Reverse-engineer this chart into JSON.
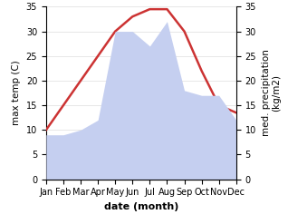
{
  "months": [
    "Jan",
    "Feb",
    "Mar",
    "Apr",
    "May",
    "Jun",
    "Jul",
    "Aug",
    "Sep",
    "Oct",
    "Nov",
    "Dec"
  ],
  "temperature": [
    10,
    15,
    20,
    25,
    30,
    33,
    34.5,
    34.5,
    30,
    22,
    15,
    13.5
  ],
  "precipitation": [
    9,
    9,
    10,
    12,
    30,
    30,
    27,
    32,
    18,
    17,
    17,
    12
  ],
  "temp_color": "#cc3333",
  "precip_fill_color": "#c5cff0",
  "background_color": "#ffffff",
  "xlabel": "date (month)",
  "ylabel_left": "max temp (C)",
  "ylabel_right": "med. precipitation\n(kg/m2)",
  "ylim": [
    0,
    35
  ],
  "yticks": [
    0,
    5,
    10,
    15,
    20,
    25,
    30,
    35
  ],
  "temp_linewidth": 1.8,
  "xlabel_fontsize": 8,
  "ylabel_fontsize": 7.5,
  "tick_fontsize": 7
}
